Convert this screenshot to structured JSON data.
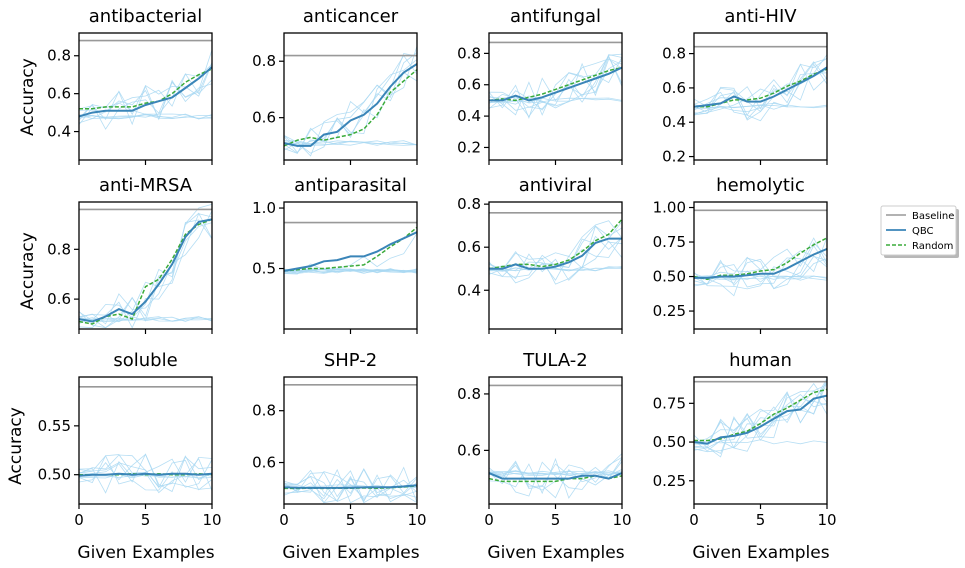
{
  "figure": {
    "ylabel": "Accuracy",
    "xlabel": "Given Examples",
    "legend": {
      "placement": "right",
      "entries": [
        {
          "label": "Baseline",
          "color": "#999999",
          "style": "solid"
        },
        {
          "label": "QBC",
          "color": "#3a85b8",
          "style": "solid"
        },
        {
          "label": "Random",
          "color": "#3aab3a",
          "style": "dashed"
        }
      ]
    },
    "colors": {
      "baseline": "#999999",
      "qbc": "#3a85b8",
      "random": "#3aab3a",
      "trials": "#a9d8f2"
    }
  },
  "chart_data": [
    {
      "type": "line",
      "title": "antibacterial",
      "xlim": [
        0,
        10
      ],
      "ylim": [
        0.25,
        0.92
      ],
      "xticks": [
        0,
        5,
        10
      ],
      "xtick_labels": [
        "",
        "",
        ""
      ],
      "yticks": [
        0.4,
        0.6,
        0.8
      ],
      "ytick_labels": [
        "0.4",
        "0.6",
        "0.8"
      ],
      "baseline": 0.88,
      "x": [
        0,
        1,
        2,
        3,
        4,
        5,
        6,
        7,
        8,
        9,
        10
      ],
      "series": [
        {
          "name": "QBC",
          "values": [
            0.48,
            0.5,
            0.51,
            0.51,
            0.51,
            0.54,
            0.56,
            0.58,
            0.63,
            0.68,
            0.74
          ]
        },
        {
          "name": "Random",
          "values": [
            0.52,
            0.52,
            0.53,
            0.53,
            0.53,
            0.55,
            0.56,
            0.6,
            0.66,
            0.7,
            0.73
          ]
        }
      ]
    },
    {
      "type": "line",
      "title": "anticancer",
      "xlim": [
        0,
        10
      ],
      "ylim": [
        0.45,
        0.9
      ],
      "xticks": [
        0,
        5,
        10
      ],
      "xtick_labels": [
        "",
        "",
        ""
      ],
      "yticks": [
        0.6,
        0.8
      ],
      "ytick_labels": [
        "0.6",
        "0.8"
      ],
      "baseline": 0.82,
      "x": [
        0,
        1,
        2,
        3,
        4,
        5,
        6,
        7,
        8,
        9,
        10
      ],
      "series": [
        {
          "name": "QBC",
          "values": [
            0.51,
            0.5,
            0.5,
            0.54,
            0.55,
            0.59,
            0.61,
            0.65,
            0.71,
            0.76,
            0.79
          ]
        },
        {
          "name": "Random",
          "values": [
            0.5,
            0.52,
            0.53,
            0.52,
            0.53,
            0.54,
            0.56,
            0.61,
            0.69,
            0.73,
            0.77
          ]
        }
      ]
    },
    {
      "type": "line",
      "title": "antifungal",
      "xlim": [
        0,
        10
      ],
      "ylim": [
        0.12,
        0.93
      ],
      "xticks": [
        0,
        5,
        10
      ],
      "xtick_labels": [
        "",
        "",
        ""
      ],
      "yticks": [
        0.2,
        0.4,
        0.6,
        0.8
      ],
      "ytick_labels": [
        "0.2",
        "0.4",
        "0.6",
        "0.8"
      ],
      "baseline": 0.87,
      "x": [
        0,
        1,
        2,
        3,
        4,
        5,
        6,
        7,
        8,
        9,
        10
      ],
      "series": [
        {
          "name": "QBC",
          "values": [
            0.5,
            0.5,
            0.53,
            0.5,
            0.52,
            0.55,
            0.58,
            0.61,
            0.64,
            0.67,
            0.71
          ]
        },
        {
          "name": "Random",
          "values": [
            0.5,
            0.51,
            0.5,
            0.52,
            0.54,
            0.57,
            0.6,
            0.63,
            0.66,
            0.69,
            0.71
          ]
        }
      ]
    },
    {
      "type": "line",
      "title": "anti-HIV",
      "xlim": [
        0,
        10
      ],
      "ylim": [
        0.18,
        0.92
      ],
      "xticks": [
        0,
        5,
        10
      ],
      "xtick_labels": [
        "",
        "",
        ""
      ],
      "yticks": [
        0.2,
        0.4,
        0.6,
        0.8
      ],
      "ytick_labels": [
        "0.2",
        "0.4",
        "0.6",
        "0.8"
      ],
      "baseline": 0.84,
      "x": [
        0,
        1,
        2,
        3,
        4,
        5,
        6,
        7,
        8,
        9,
        10
      ],
      "series": [
        {
          "name": "QBC",
          "values": [
            0.49,
            0.5,
            0.51,
            0.55,
            0.52,
            0.52,
            0.55,
            0.59,
            0.63,
            0.67,
            0.72
          ]
        },
        {
          "name": "Random",
          "values": [
            0.49,
            0.49,
            0.51,
            0.53,
            0.53,
            0.54,
            0.57,
            0.61,
            0.64,
            0.68,
            0.71
          ]
        }
      ]
    },
    {
      "type": "line",
      "title": "anti-MRSA",
      "xlim": [
        0,
        10
      ],
      "ylim": [
        0.48,
        0.99
      ],
      "xticks": [
        0,
        5,
        10
      ],
      "xtick_labels": [
        "",
        "",
        ""
      ],
      "yticks": [
        0.6,
        0.8
      ],
      "ytick_labels": [
        "0.6",
        "0.8"
      ],
      "baseline": 0.96,
      "x": [
        0,
        1,
        2,
        3,
        4,
        5,
        6,
        7,
        8,
        9,
        10
      ],
      "series": [
        {
          "name": "QBC",
          "values": [
            0.52,
            0.51,
            0.53,
            0.56,
            0.54,
            0.59,
            0.66,
            0.74,
            0.85,
            0.91,
            0.92
          ]
        },
        {
          "name": "Random",
          "values": [
            0.51,
            0.5,
            0.53,
            0.54,
            0.52,
            0.65,
            0.68,
            0.76,
            0.86,
            0.9,
            0.92
          ]
        }
      ]
    },
    {
      "type": "line",
      "title": "antiparasital",
      "xlim": [
        0,
        10
      ],
      "ylim": [
        0.0,
        1.05
      ],
      "xticks": [
        0,
        5,
        10
      ],
      "xtick_labels": [
        "",
        "",
        ""
      ],
      "yticks": [
        0.5,
        1.0
      ],
      "ytick_labels": [
        "0.5",
        "1.0"
      ],
      "baseline": 0.88,
      "x": [
        0,
        1,
        2,
        3,
        4,
        5,
        6,
        7,
        8,
        9,
        10
      ],
      "series": [
        {
          "name": "QBC",
          "values": [
            0.48,
            0.5,
            0.52,
            0.56,
            0.57,
            0.6,
            0.6,
            0.64,
            0.7,
            0.75,
            0.8
          ]
        },
        {
          "name": "Random",
          "values": [
            0.48,
            0.49,
            0.5,
            0.5,
            0.51,
            0.52,
            0.53,
            0.6,
            0.68,
            0.75,
            0.84
          ]
        }
      ]
    },
    {
      "type": "line",
      "title": "antiviral",
      "xlim": [
        0,
        10
      ],
      "ylim": [
        0.22,
        0.81
      ],
      "xticks": [
        0,
        5,
        10
      ],
      "xtick_labels": [
        "",
        "",
        ""
      ],
      "yticks": [
        0.4,
        0.6,
        0.8
      ],
      "ytick_labels": [
        "0.4",
        "0.6",
        "0.8"
      ],
      "baseline": 0.76,
      "x": [
        0,
        1,
        2,
        3,
        4,
        5,
        6,
        7,
        8,
        9,
        10
      ],
      "series": [
        {
          "name": "QBC",
          "values": [
            0.5,
            0.5,
            0.52,
            0.5,
            0.5,
            0.51,
            0.53,
            0.56,
            0.62,
            0.64,
            0.64
          ]
        },
        {
          "name": "Random",
          "values": [
            0.5,
            0.51,
            0.52,
            0.52,
            0.51,
            0.52,
            0.54,
            0.58,
            0.63,
            0.66,
            0.73
          ]
        }
      ]
    },
    {
      "type": "line",
      "title": "hemolytic",
      "xlim": [
        0,
        10
      ],
      "ylim": [
        0.12,
        1.04
      ],
      "xticks": [
        0,
        5,
        10
      ],
      "xtick_labels": [
        "",
        "",
        ""
      ],
      "yticks": [
        0.25,
        0.5,
        0.75,
        1.0
      ],
      "ytick_labels": [
        "0.25",
        "0.50",
        "0.75",
        "1.00"
      ],
      "baseline": 0.98,
      "x": [
        0,
        1,
        2,
        3,
        4,
        5,
        6,
        7,
        8,
        9,
        10
      ],
      "series": [
        {
          "name": "QBC",
          "values": [
            0.49,
            0.49,
            0.5,
            0.5,
            0.51,
            0.52,
            0.52,
            0.56,
            0.61,
            0.66,
            0.7
          ]
        },
        {
          "name": "Random",
          "values": [
            0.5,
            0.48,
            0.51,
            0.51,
            0.52,
            0.54,
            0.55,
            0.6,
            0.67,
            0.73,
            0.78
          ]
        }
      ]
    },
    {
      "type": "line",
      "title": "soluble",
      "xlim": [
        0,
        10
      ],
      "ylim": [
        0.47,
        0.6
      ],
      "xticks": [
        0,
        5,
        10
      ],
      "xtick_labels": [
        "0",
        "5",
        "10"
      ],
      "yticks": [
        0.5,
        0.55
      ],
      "ytick_labels": [
        "0.50",
        "0.55"
      ],
      "baseline": 0.59,
      "x": [
        0,
        1,
        2,
        3,
        4,
        5,
        6,
        7,
        8,
        9,
        10
      ],
      "series": [
        {
          "name": "QBC",
          "values": [
            0.499,
            0.5,
            0.5,
            0.501,
            0.5,
            0.501,
            0.5,
            0.501,
            0.501,
            0.5,
            0.501
          ]
        },
        {
          "name": "Random",
          "values": [
            0.5,
            0.5,
            0.5,
            0.5,
            0.501,
            0.5,
            0.501,
            0.5,
            0.5,
            0.501,
            0.5
          ]
        }
      ]
    },
    {
      "type": "line",
      "title": "SHP-2",
      "xlim": [
        0,
        10
      ],
      "ylim": [
        0.44,
        0.93
      ],
      "xticks": [
        0,
        5,
        10
      ],
      "xtick_labels": [
        "0",
        "5",
        "10"
      ],
      "yticks": [
        0.6,
        0.8
      ],
      "ytick_labels": [
        "0.6",
        "0.8"
      ],
      "baseline": 0.9,
      "x": [
        0,
        1,
        2,
        3,
        4,
        5,
        6,
        7,
        8,
        9,
        10
      ],
      "series": [
        {
          "name": "QBC",
          "values": [
            0.505,
            0.503,
            0.502,
            0.502,
            0.502,
            0.503,
            0.504,
            0.505,
            0.505,
            0.508,
            0.512
          ]
        },
        {
          "name": "Random",
          "values": [
            0.5,
            0.5,
            0.501,
            0.5,
            0.501,
            0.501,
            0.502,
            0.501,
            0.503,
            0.506,
            0.51
          ]
        }
      ]
    },
    {
      "type": "line",
      "title": "TULA-2",
      "xlim": [
        0,
        10
      ],
      "ylim": [
        0.41,
        0.86
      ],
      "xticks": [
        0,
        5,
        10
      ],
      "xtick_labels": [
        "0",
        "5",
        "10"
      ],
      "yticks": [
        0.6,
        0.8
      ],
      "ytick_labels": [
        "0.6",
        "0.8"
      ],
      "baseline": 0.83,
      "x": [
        0,
        1,
        2,
        3,
        4,
        5,
        6,
        7,
        8,
        9,
        10
      ],
      "series": [
        {
          "name": "QBC",
          "values": [
            0.52,
            0.5,
            0.5,
            0.5,
            0.5,
            0.5,
            0.5,
            0.51,
            0.51,
            0.5,
            0.52
          ]
        },
        {
          "name": "Random",
          "values": [
            0.5,
            0.49,
            0.49,
            0.49,
            0.49,
            0.49,
            0.5,
            0.5,
            0.51,
            0.5,
            0.51
          ]
        }
      ]
    },
    {
      "type": "line",
      "title": "human",
      "xlim": [
        0,
        10
      ],
      "ylim": [
        0.1,
        0.92
      ],
      "xticks": [
        0,
        5,
        10
      ],
      "xtick_labels": [
        "0",
        "5",
        "10"
      ],
      "yticks": [
        0.25,
        0.5,
        0.75
      ],
      "ytick_labels": [
        "0.25",
        "0.50",
        "0.75"
      ],
      "baseline": 0.89,
      "x": [
        0,
        1,
        2,
        3,
        4,
        5,
        6,
        7,
        8,
        9,
        10
      ],
      "series": [
        {
          "name": "QBC",
          "values": [
            0.5,
            0.49,
            0.53,
            0.54,
            0.56,
            0.6,
            0.65,
            0.7,
            0.71,
            0.78,
            0.8
          ]
        },
        {
          "name": "Random",
          "values": [
            0.51,
            0.51,
            0.52,
            0.55,
            0.57,
            0.62,
            0.68,
            0.72,
            0.77,
            0.82,
            0.84
          ]
        }
      ]
    }
  ]
}
